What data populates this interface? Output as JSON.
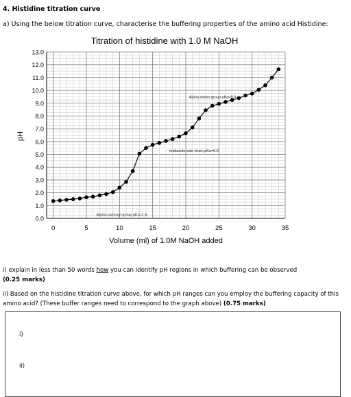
{
  "document": {
    "heading": "4. Histidine titration curve",
    "question_a": "a) Using the below titration curve, characterise the buffering properties of the amino acid Histidine:",
    "question_i": {
      "before": "i) explain in less than 50 words ",
      "underlined": "how",
      "after": " you can identify pH regions in which buffering can be observed",
      "marks": "(0.25 marks)"
    },
    "question_ii": {
      "text": "ii) Based on the histidine titration curve above, for which pH ranges can you employ the buffering capacity of this amino acid? (These buffer ranges need to correspond to the graph above)",
      "marks": "(0.75 marks)"
    },
    "answer_labels": {
      "i": "i)",
      "ii": "ii)"
    }
  },
  "chart_data": {
    "type": "scatter",
    "title": "Titration of histidine with 1.0 M NaOH",
    "xlabel": "Volume (ml) of 1.0M NaOH added",
    "ylabel": "pH",
    "xlim": [
      -1,
      35
    ],
    "ylim": [
      0,
      13
    ],
    "xticks": [
      "0",
      "5",
      "10",
      "15",
      "20",
      "25",
      "30",
      "35"
    ],
    "yticks": [
      "0.0",
      "1.0",
      "2.0",
      "3.0",
      "4.0",
      "5.0",
      "6.0",
      "7.0",
      "8.0",
      "9.0",
      "10.0",
      "11.0",
      "12.0",
      "13.0"
    ],
    "grid": true,
    "x": [
      0,
      1,
      2,
      3,
      4,
      5,
      6,
      7,
      8,
      9,
      10,
      11,
      12,
      13,
      14,
      15,
      16,
      17,
      18,
      19,
      20,
      21,
      22,
      23,
      24,
      25,
      26,
      27,
      28,
      29,
      30,
      31,
      32,
      33,
      34
    ],
    "y": [
      1.35,
      1.4,
      1.45,
      1.5,
      1.55,
      1.65,
      1.7,
      1.8,
      1.9,
      2.05,
      2.4,
      2.85,
      3.7,
      5.05,
      5.5,
      5.75,
      5.9,
      6.05,
      6.2,
      6.4,
      6.65,
      7.1,
      7.8,
      8.45,
      8.8,
      8.95,
      9.1,
      9.25,
      9.4,
      9.6,
      9.75,
      10.05,
      10.4,
      11.0,
      11.65
    ],
    "annotations": [
      {
        "text": "Alpha amino group pKa=9.0",
        "x": 20.5,
        "y": 9.5
      },
      {
        "text": "Imidazole side chain pKa=6.0",
        "x": 17.5,
        "y": 5.3
      },
      {
        "text": "Alpha-carboxyl group pKa=1.8",
        "x": 6.5,
        "y": 0.3
      }
    ]
  }
}
